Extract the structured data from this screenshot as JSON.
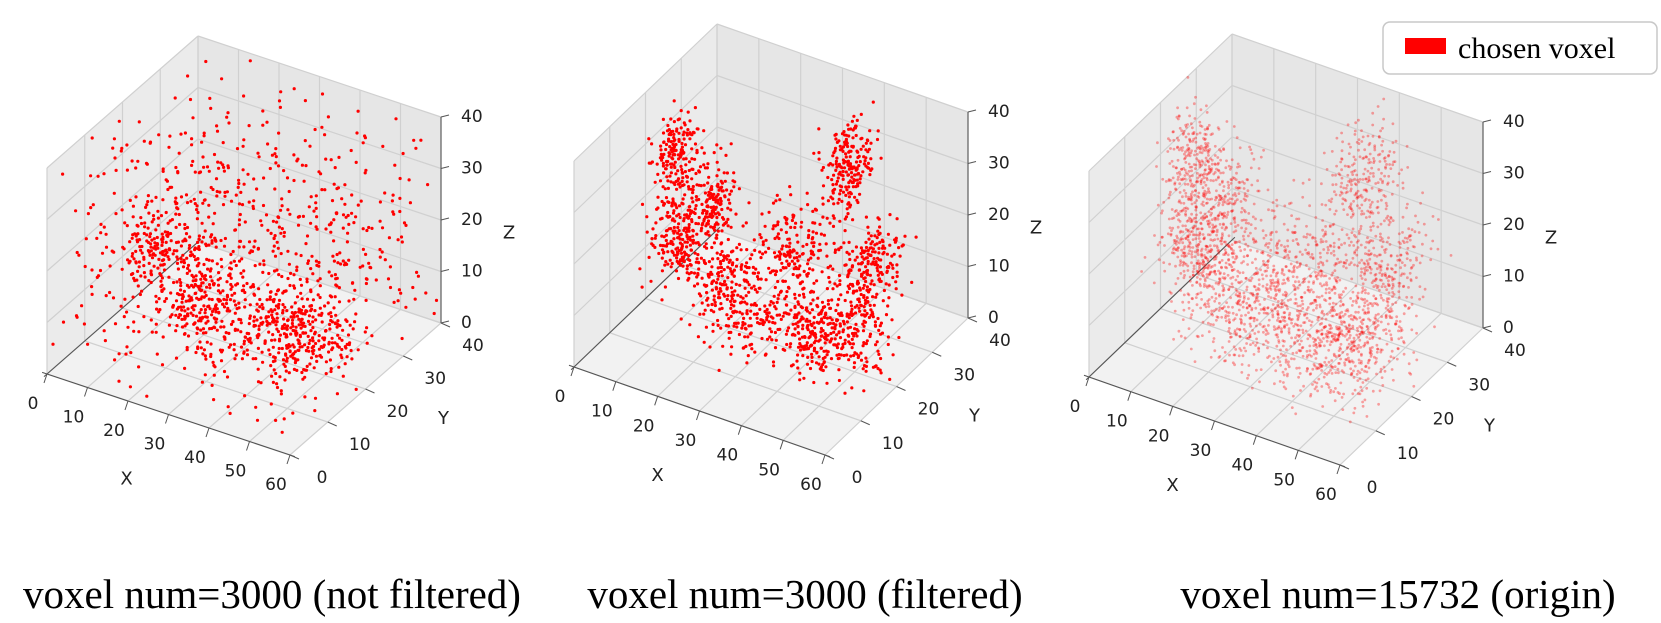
{
  "legend": {
    "label": "chosen voxel",
    "color": "#ff0000",
    "position": "top-right"
  },
  "chart_data": [
    {
      "type": "scatter3d",
      "caption": "voxel num=3000 (not filtered)",
      "xlabel": "X",
      "ylabel": "Y",
      "zlabel": "Z",
      "xticks": [
        "0",
        "10",
        "20",
        "30",
        "40",
        "50",
        "60"
      ],
      "yticks": [
        "0",
        "10",
        "20",
        "30",
        "40"
      ],
      "zticks": [
        "0",
        "10",
        "20",
        "30",
        "40"
      ],
      "xlim": [
        0,
        60
      ],
      "ylim": [
        0,
        40
      ],
      "zlim": [
        0,
        40
      ],
      "grid": true,
      "point_count": 3000,
      "distribution": "scattered"
    },
    {
      "type": "scatter3d",
      "caption": "voxel num=3000 (filtered)",
      "xlabel": "X",
      "ylabel": "Y",
      "zlabel": "Z",
      "xticks": [
        "0",
        "10",
        "20",
        "30",
        "40",
        "50",
        "60"
      ],
      "yticks": [
        "0",
        "10",
        "20",
        "30",
        "40"
      ],
      "zticks": [
        "0",
        "10",
        "20",
        "30",
        "40"
      ],
      "xlim": [
        0,
        60
      ],
      "ylim": [
        0,
        40
      ],
      "zlim": [
        0,
        40
      ],
      "grid": true,
      "point_count": 3000,
      "distribution": "clustered"
    },
    {
      "type": "scatter3d",
      "caption": "voxel num=15732 (origin)",
      "xlabel": "X",
      "ylabel": "Y",
      "zlabel": "Z",
      "xticks": [
        "0",
        "10",
        "20",
        "30",
        "40",
        "50",
        "60"
      ],
      "yticks": [
        "0",
        "10",
        "20",
        "30",
        "40"
      ],
      "zticks": [
        "0",
        "10",
        "20",
        "30",
        "40"
      ],
      "xlim": [
        0,
        60
      ],
      "ylim": [
        0,
        40
      ],
      "zlim": [
        0,
        40
      ],
      "grid": true,
      "point_count": 15732,
      "distribution": "dense"
    }
  ]
}
